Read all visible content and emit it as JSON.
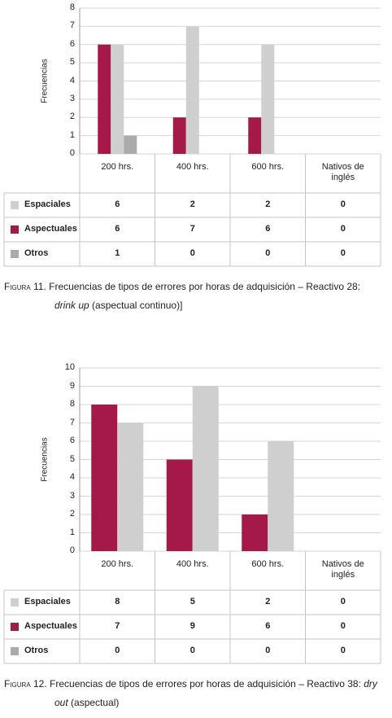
{
  "figures": [
    {
      "chart_data": {
        "type": "bar",
        "y_label": "Frecuencias",
        "categories": [
          "200 hrs.",
          "400 hrs.",
          "600 hrs.",
          "Nativos de inglés"
        ],
        "ylim": [
          0,
          8
        ],
        "yticks": [
          0,
          1,
          2,
          3,
          4,
          5,
          6,
          7,
          8
        ],
        "grid": true,
        "series": [
          {
            "name": "Espaciales",
            "color": "#cfcfcf",
            "bar_color": "#a5184a",
            "values": [
              6,
              2,
              2,
              0
            ]
          },
          {
            "name": "Aspectuales",
            "color": "#a5184a",
            "bar_color": "#cfcfcf",
            "values": [
              6,
              7,
              6,
              0
            ]
          },
          {
            "name": "Otros",
            "color": "#ababab",
            "bar_color": "#ababab",
            "values": [
              1,
              0,
              0,
              0
            ]
          }
        ]
      },
      "caption": {
        "label": "Figura 11.",
        "text": " Frecuencias de tipos de errores por horas de adquisición – Reactivo 28: ",
        "italic": "drink up",
        "rest": " (aspectual continuo)]"
      }
    },
    {
      "chart_data": {
        "type": "bar",
        "y_label": "Frecuencias",
        "categories": [
          "200 hrs.",
          "400 hrs.",
          "600 hrs.",
          "Nativos de inglés"
        ],
        "ylim": [
          0,
          10
        ],
        "yticks": [
          0,
          1,
          2,
          3,
          4,
          5,
          6,
          7,
          8,
          9,
          10
        ],
        "grid": true,
        "series": [
          {
            "name": "Espaciales",
            "color": "#cfcfcf",
            "bar_color": "#a5184a",
            "values": [
              8,
              5,
              2,
              0
            ]
          },
          {
            "name": "Aspectuales",
            "color": "#a5184a",
            "bar_color": "#cfcfcf",
            "values": [
              7,
              9,
              6,
              0
            ]
          },
          {
            "name": "Otros",
            "color": "#ababab",
            "bar_color": "#ababab",
            "values": [
              0,
              0,
              0,
              0
            ]
          }
        ]
      },
      "caption": {
        "label": "Figura 12.",
        "text": " Frecuencias de tipos de errores por horas de adquisición – Reactivo 38: ",
        "italic": "dry out",
        "rest": " (aspectual)"
      }
    }
  ]
}
